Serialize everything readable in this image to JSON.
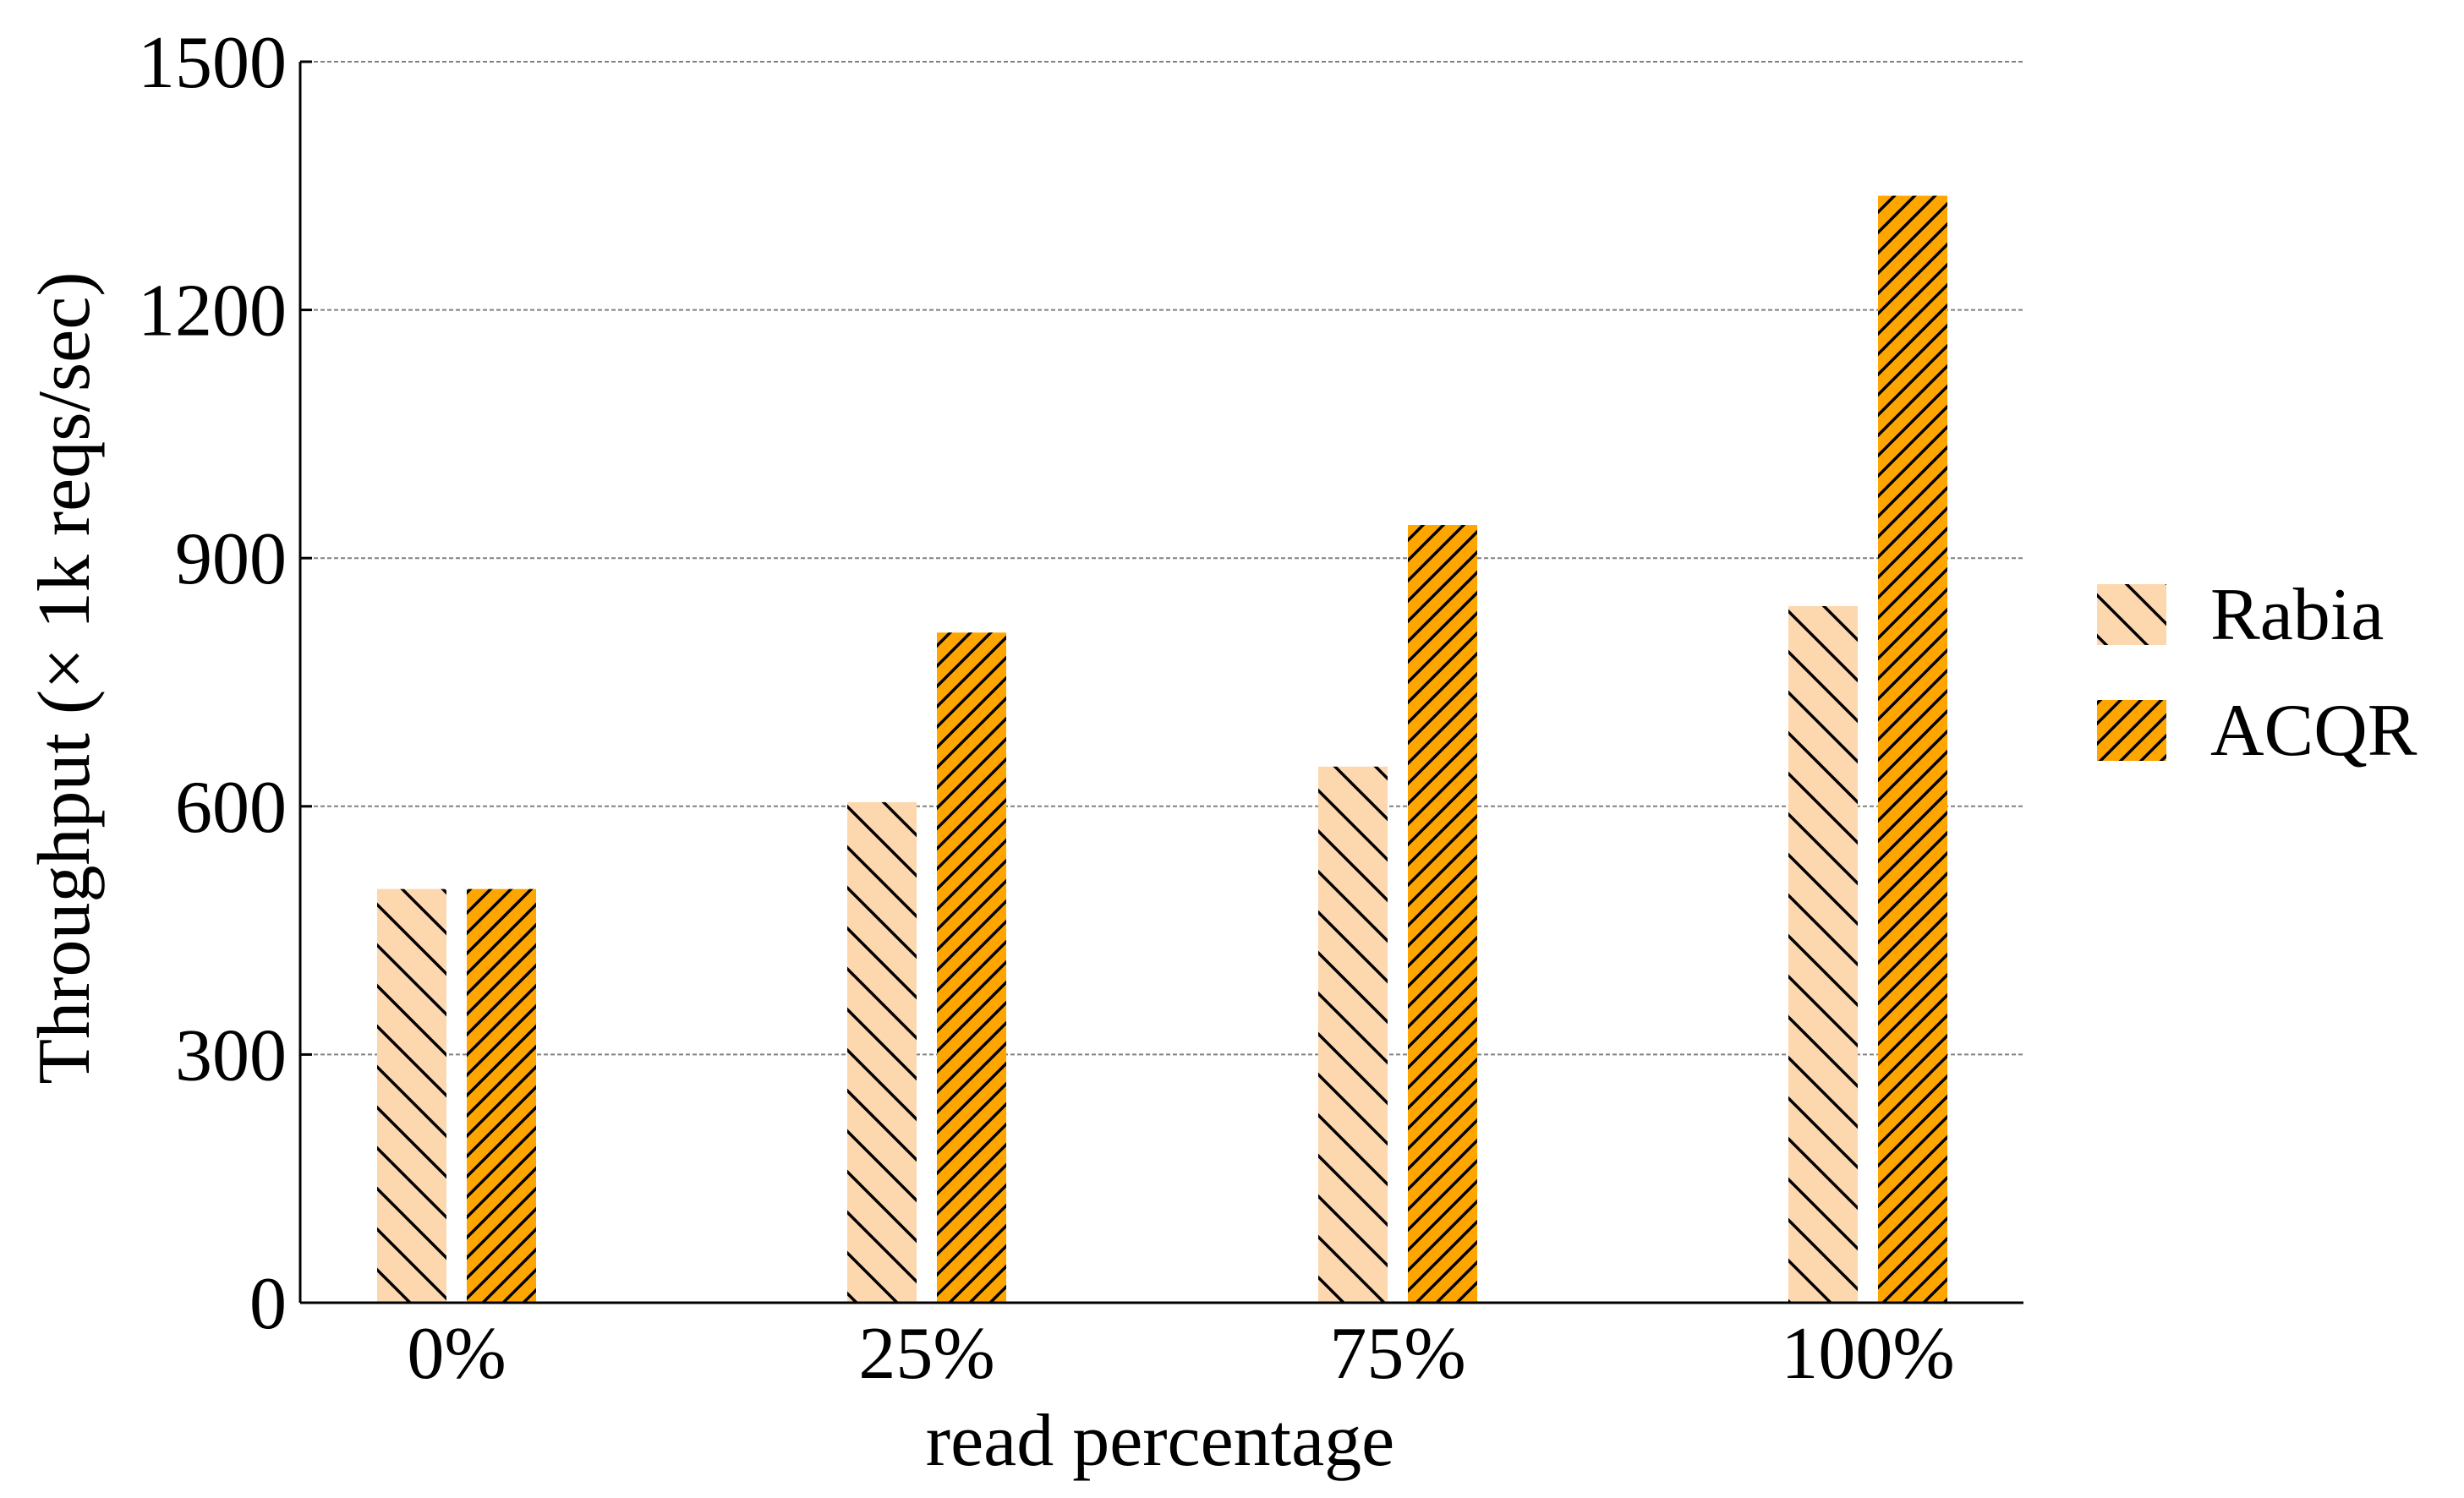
{
  "chart_data": {
    "type": "bar",
    "categories": [
      "0%",
      "25%",
      "75%",
      "100%"
    ],
    "series": [
      {
        "name": "Rabia",
        "values": [
          500,
          605,
          648,
          842
        ],
        "color": "#FDD7AE",
        "hatch": "backslash"
      },
      {
        "name": "ACQR",
        "values": [
          500,
          810,
          940,
          1338
        ],
        "color": "#FFA500",
        "hatch": "slash"
      }
    ],
    "title": "",
    "xlabel": "read percentage",
    "ylabel": "Throughput (× 1k reqs/sec)",
    "ylim": [
      0,
      1500
    ],
    "yticks": [
      "0",
      "300",
      "600",
      "900",
      "1200",
      "1500"
    ],
    "ytick_values": [
      0,
      300,
      600,
      900,
      1200,
      1500
    ],
    "grid": "horizontal-dashed",
    "legend_position": "right"
  }
}
